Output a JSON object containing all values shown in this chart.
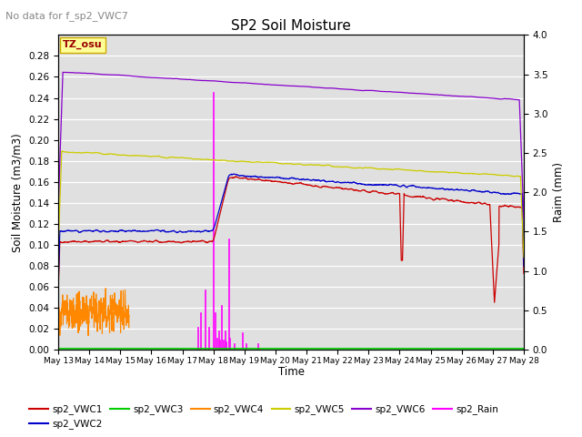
{
  "title": "SP2 Soil Moisture",
  "subtitle": "No data for f_sp2_VWC7",
  "ylabel_left": "Soil Moisture (m3/m3)",
  "ylabel_right": "Raim (mm)",
  "xlabel": "Time",
  "ylim_left": [
    0.0,
    0.3
  ],
  "ylim_right": [
    0.0,
    4.0
  ],
  "yticks_left": [
    0.0,
    0.02,
    0.04,
    0.06,
    0.08,
    0.1,
    0.12,
    0.14,
    0.16,
    0.18,
    0.2,
    0.22,
    0.24,
    0.26,
    0.28
  ],
  "yticks_right": [
    0.0,
    0.5,
    1.0,
    1.5,
    2.0,
    2.5,
    3.0,
    3.5,
    4.0
  ],
  "x_tick_labels": [
    "May 13",
    "May 14",
    "May 15",
    "May 16",
    "May 17",
    "May 18",
    "May 19",
    "May 20",
    "May 21",
    "May 22",
    "May 23",
    "May 24",
    "May 25",
    "May 26",
    "May 27",
    "May 28"
  ],
  "bg_color": "#e0e0e0",
  "grid_color": "#ffffff",
  "tz_box_color": "#ffff99",
  "tz_box_edge": "#ccaa00",
  "tz_text_color": "#990000",
  "colors": {
    "VWC1": "#cc0000",
    "VWC2": "#0000cc",
    "VWC3": "#00cc00",
    "VWC4": "#ff8800",
    "VWC5": "#cccc00",
    "VWC6": "#8800cc",
    "Rain": "#ff00ff"
  },
  "legend_entries": [
    "sp2_VWC1",
    "sp2_VWC2",
    "sp2_VWC3",
    "sp2_VWC4",
    "sp2_VWC5",
    "sp2_VWC6",
    "sp2_Rain"
  ]
}
